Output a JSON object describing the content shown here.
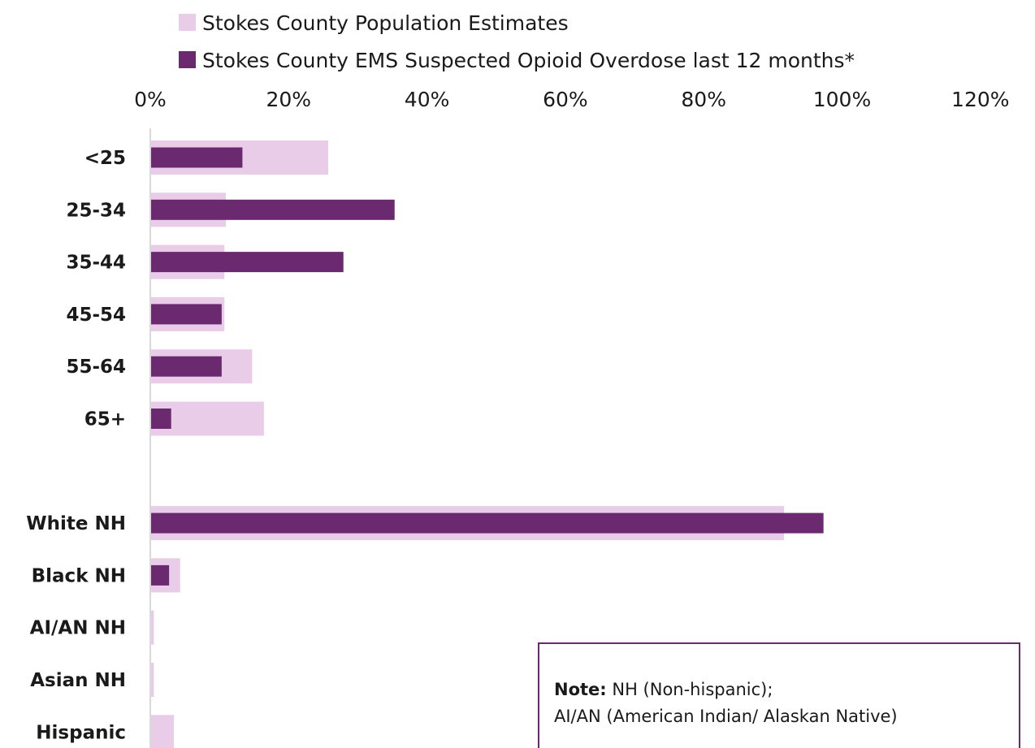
{
  "chart_data": {
    "type": "bar",
    "orientation": "horizontal",
    "categories": [
      "<25",
      "25-34",
      "35-44",
      "45-54",
      "55-64",
      "65+",
      "",
      "White NH",
      "Black NH",
      "AI/AN NH",
      "Asian NH",
      "Hispanic"
    ],
    "series": [
      {
        "name": "Stokes County Population Estimates",
        "color": "#e8cce8",
        "values": [
          25.6,
          10.8,
          10.6,
          10.6,
          14.6,
          16.3,
          null,
          91.5,
          4.2,
          0.4,
          0.4,
          3.3
        ]
      },
      {
        "name": "Stokes County EMS Suspected Opioid Overdose last 12 months*",
        "color": "#6b2a6f",
        "values": [
          13.2,
          35.2,
          27.8,
          10.2,
          10.2,
          2.9,
          null,
          97.2,
          2.6,
          0,
          0,
          0
        ]
      }
    ],
    "x_ticks": [
      "0%",
      "20%",
      "40%",
      "60%",
      "80%",
      "100%",
      "120%"
    ],
    "xlim": [
      0,
      120
    ],
    "axis_position": "top",
    "legend_position": "top",
    "grid": false
  },
  "note": {
    "label": "Note:",
    "line1": " NH (Non-hispanic);",
    "line2": "AI/AN (American Indian/ Alaskan Native)"
  }
}
